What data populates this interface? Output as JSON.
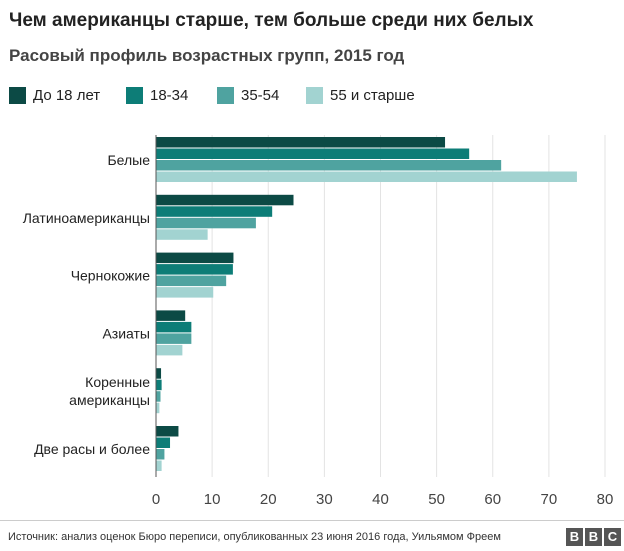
{
  "chart_data": {
    "type": "bar",
    "orientation": "horizontal",
    "title": "Чем американцы старше, тем больше среди них белых",
    "subtitle": "Расовый профиль возрастных групп, 2015 год",
    "categories": [
      "Белые",
      "Латиноамериканцы",
      "Чернокожие",
      "Азиаты",
      "Коренные американцы",
      "Две расы и более"
    ],
    "series": [
      {
        "name": "До 18 лет",
        "color": "#0c4a45",
        "values": [
          51.5,
          24.5,
          13.8,
          5.2,
          0.9,
          4.0
        ]
      },
      {
        "name": "18-34",
        "color": "#0d7d77",
        "values": [
          55.8,
          20.7,
          13.7,
          6.3,
          1.0,
          2.5
        ]
      },
      {
        "name": "35-54",
        "color": "#4fa3a0",
        "values": [
          61.5,
          17.8,
          12.5,
          6.3,
          0.8,
          1.5
        ]
      },
      {
        "name": "55 и старше",
        "color": "#a2d3d1",
        "values": [
          75.0,
          9.2,
          10.2,
          4.7,
          0.6,
          1.0
        ]
      }
    ],
    "xlim": [
      0,
      80
    ],
    "xticks": [
      0,
      10,
      20,
      30,
      40,
      50,
      60,
      70,
      80
    ],
    "grid": true,
    "legend_position": "top-left"
  },
  "footer": {
    "source": "Источник: анализ оценок Бюро переписи, опубликованных 23 июня 2016 года, Уильямом Фреем",
    "logo_letters": [
      "B",
      "B",
      "C"
    ]
  }
}
